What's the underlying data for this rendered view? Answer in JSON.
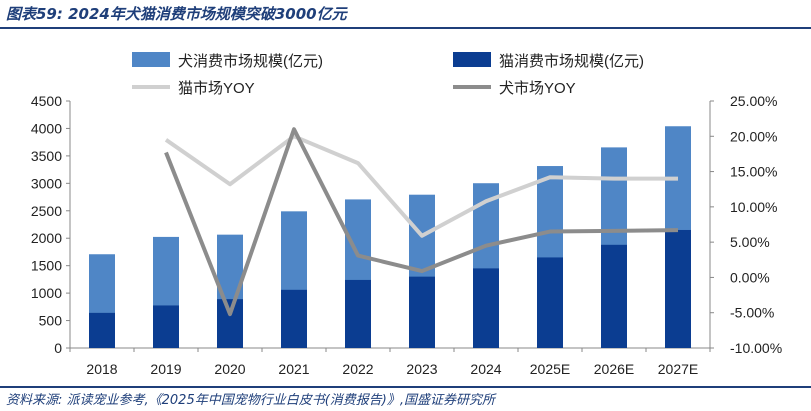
{
  "header": {
    "title": "图表59: 2024年犬猫消费市场规模突破3000亿元"
  },
  "footer": {
    "source": "资料来源: 派读宠业参考,《2025年中国宠物行业白皮书(消费报告)》,国盛证券研究所"
  },
  "colors": {
    "brand": "#1f3f7a",
    "dog_bar": "#4f86c6",
    "cat_bar": "#0b3d91",
    "cat_yoy": "#d0d0d0",
    "dog_yoy": "#8c8c8c"
  },
  "chart_data": {
    "type": "bar",
    "categories": [
      "2018",
      "2019",
      "2020",
      "2021",
      "2022",
      "2023",
      "2024",
      "2025E",
      "2026E",
      "2027E"
    ],
    "series": [
      {
        "name": "犬消费市场规模(亿元)",
        "kind": "bar",
        "axis": "left",
        "values": [
          1708,
          2024,
          2065,
          2490,
          2707,
          2793,
          3002,
          3315,
          3655,
          4040
        ]
      },
      {
        "name": "猫消费市场规模(亿元)",
        "kind": "bar",
        "axis": "left",
        "values": [
          640,
          775,
          890,
          1060,
          1240,
          1300,
          1450,
          1650,
          1880,
          2150
        ]
      },
      {
        "name": "猫市场YOY",
        "kind": "line",
        "axis": "right",
        "values": [
          null,
          0.195,
          0.132,
          0.2,
          0.162,
          0.059,
          0.108,
          0.142,
          0.14,
          0.14
        ]
      },
      {
        "name": "犬市场YOY",
        "kind": "line",
        "axis": "right",
        "values": [
          null,
          0.177,
          -0.052,
          0.21,
          0.031,
          0.009,
          0.045,
          0.065,
          0.066,
          0.067
        ]
      }
    ],
    "bar_mode": "overlap",
    "ylim": [
      0,
      4500
    ],
    "yticks": [
      "0",
      "500",
      "1000",
      "1500",
      "2000",
      "2500",
      "3000",
      "3500",
      "4000",
      "4500"
    ],
    "y2lim": [
      -0.1,
      0.25
    ],
    "y2ticks": [
      "-10.00%",
      "-5.00%",
      "0.00%",
      "5.00%",
      "10.00%",
      "15.00%",
      "20.00%",
      "25.00%"
    ],
    "legend_position": "top",
    "grid": false
  }
}
